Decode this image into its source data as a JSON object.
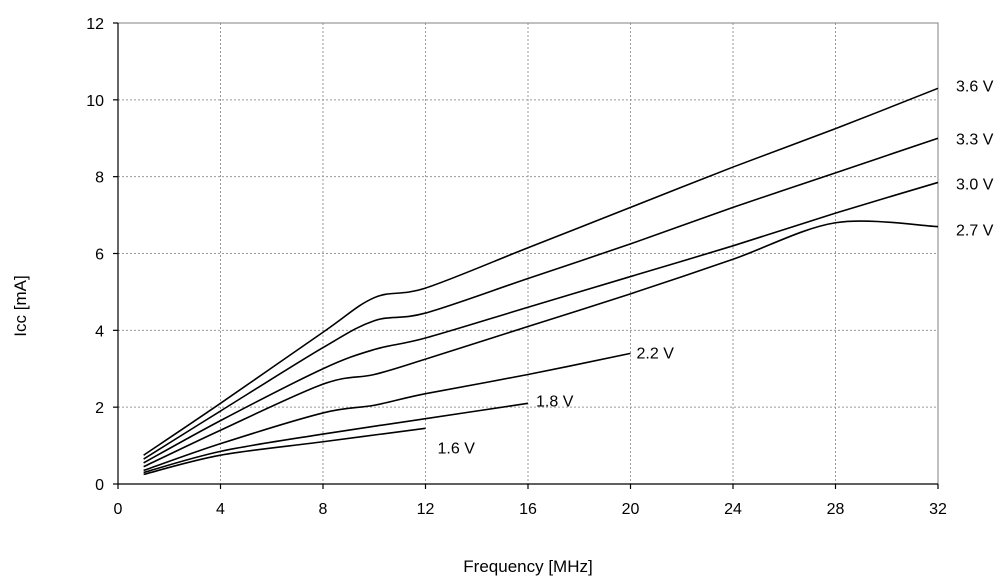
{
  "chart_data": {
    "type": "line",
    "xlabel": "Frequency [MHz]",
    "ylabel": "Icc [mA]",
    "xlim": [
      0,
      32
    ],
    "ylim": [
      0,
      12
    ],
    "x_ticks": [
      0,
      4,
      8,
      12,
      16,
      20,
      24,
      28,
      32
    ],
    "y_ticks": [
      0,
      2,
      4,
      6,
      8,
      10,
      12
    ],
    "grid": true,
    "legend": "none",
    "series": [
      {
        "name": "3.6 V",
        "x": [
          1,
          4,
          8,
          10,
          12,
          16,
          20,
          24,
          28,
          32
        ],
        "y": [
          0.75,
          2.1,
          3.95,
          4.85,
          5.1,
          6.15,
          7.2,
          8.25,
          9.25,
          10.3
        ]
      },
      {
        "name": "3.3 V",
        "x": [
          1,
          4,
          8,
          10,
          12,
          16,
          20,
          24,
          28,
          32
        ],
        "y": [
          0.65,
          1.9,
          3.55,
          4.25,
          4.45,
          5.35,
          6.25,
          7.2,
          8.1,
          9.0
        ]
      },
      {
        "name": "3.0 V",
        "x": [
          1,
          4,
          8,
          10,
          12,
          16,
          20,
          24,
          28,
          32
        ],
        "y": [
          0.55,
          1.65,
          3.0,
          3.5,
          3.8,
          4.6,
          5.4,
          6.2,
          7.05,
          7.85
        ]
      },
      {
        "name": "2.7 V",
        "x": [
          1,
          4,
          8,
          10,
          12,
          16,
          20,
          24,
          28,
          32
        ],
        "y": [
          0.45,
          1.4,
          2.6,
          2.85,
          3.25,
          4.1,
          4.95,
          5.85,
          6.8,
          6.7
        ]
      },
      {
        "name": "2.2 V",
        "x": [
          1,
          4,
          8,
          10,
          12,
          16,
          20
        ],
        "y": [
          0.35,
          1.05,
          1.85,
          2.05,
          2.35,
          2.85,
          3.4
        ]
      },
      {
        "name": "1.8 V",
        "x": [
          1,
          4,
          8,
          12,
          16
        ],
        "y": [
          0.3,
          0.85,
          1.3,
          1.7,
          2.1
        ]
      },
      {
        "name": "1.6 V",
        "x": [
          1,
          4,
          8,
          12
        ],
        "y": [
          0.25,
          0.75,
          1.1,
          1.45
        ]
      }
    ]
  }
}
